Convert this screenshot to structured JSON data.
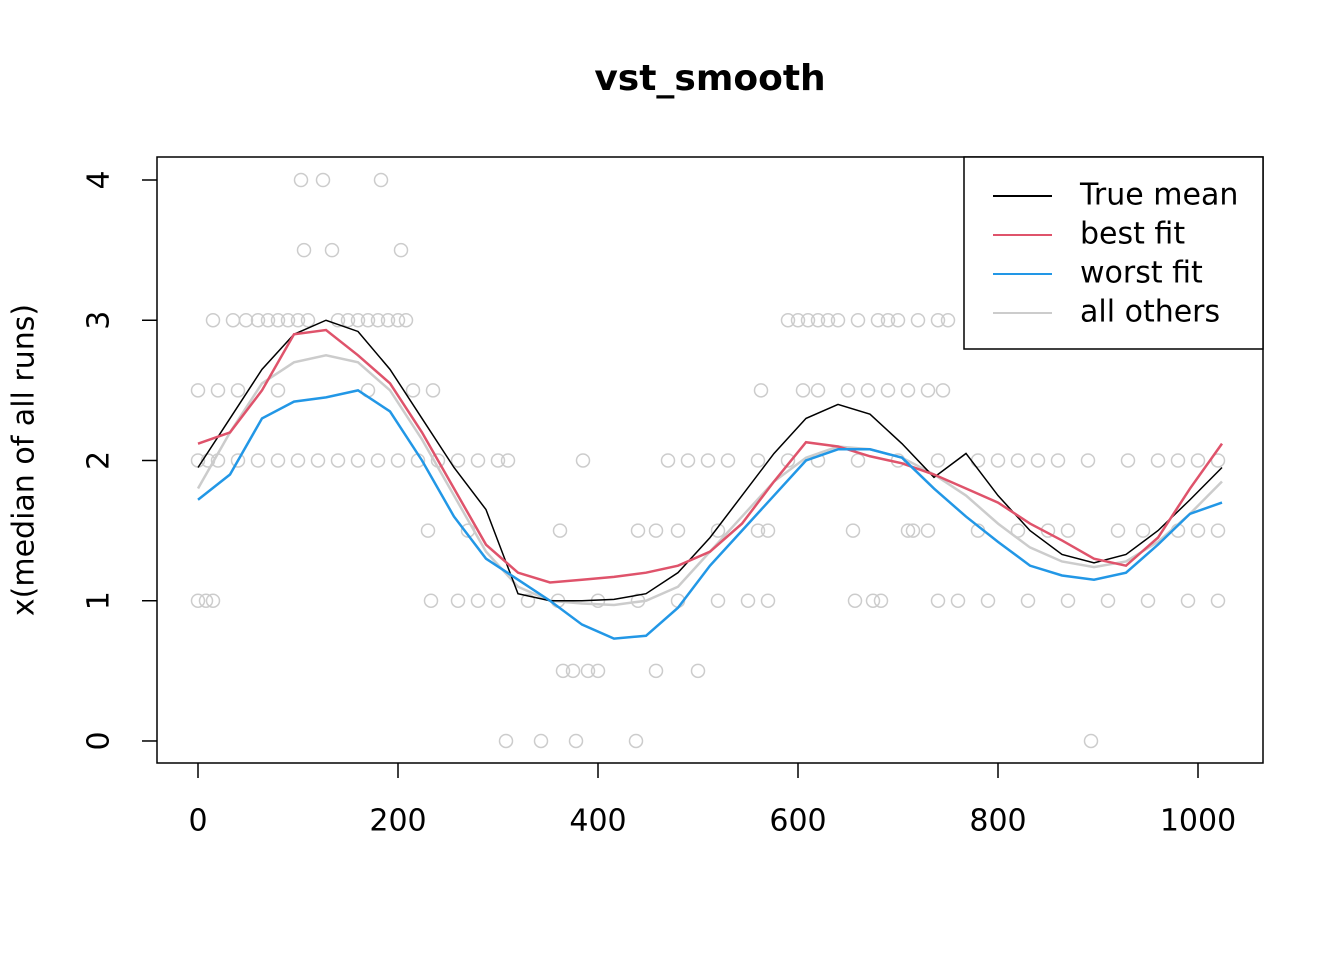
{
  "chart_data": {
    "type": "line",
    "title": "vst_smooth",
    "y_label": "x(median of all runs)",
    "xlim": [
      -41,
      1065
    ],
    "ylim": [
      -0.157,
      4.164
    ],
    "xticks": [
      0,
      200,
      400,
      600,
      800,
      1000
    ],
    "yticks": [
      0,
      1,
      2,
      3,
      4
    ],
    "legend": "top-right",
    "x": [
      0,
      32,
      64,
      96,
      128,
      160,
      192,
      224,
      256,
      288,
      320,
      352,
      384,
      416,
      448,
      480,
      512,
      544,
      576,
      608,
      640,
      672,
      704,
      736,
      768,
      800,
      832,
      864,
      896,
      928,
      960,
      992,
      1024
    ],
    "series": [
      {
        "name": "True mean",
        "color": "#000000",
        "values": [
          1.95,
          2.3,
          2.65,
          2.9,
          3.0,
          2.92,
          2.65,
          2.3,
          1.95,
          1.65,
          1.05,
          1.0,
          1.0,
          1.01,
          1.05,
          1.2,
          1.45,
          1.75,
          2.05,
          2.3,
          2.4,
          2.33,
          2.12,
          1.88,
          2.05,
          1.75,
          1.5,
          1.33,
          1.27,
          1.33,
          1.5,
          1.72,
          1.95
        ]
      },
      {
        "name": "best fit",
        "color": "#df536b",
        "values": [
          2.12,
          2.2,
          2.5,
          2.9,
          2.93,
          2.75,
          2.55,
          2.2,
          1.8,
          1.4,
          1.2,
          1.13,
          1.15,
          1.17,
          1.2,
          1.25,
          1.35,
          1.55,
          1.85,
          2.13,
          2.1,
          2.03,
          1.98,
          1.9,
          1.8,
          1.7,
          1.55,
          1.43,
          1.3,
          1.25,
          1.45,
          1.8,
          2.12
        ]
      },
      {
        "name": "worst fit",
        "color": "#2297e6",
        "values": [
          1.72,
          1.9,
          2.3,
          2.42,
          2.45,
          2.5,
          2.35,
          2.0,
          1.6,
          1.3,
          1.15,
          1.0,
          0.83,
          0.73,
          0.75,
          0.95,
          1.25,
          1.5,
          1.75,
          2.0,
          2.08,
          2.08,
          2.02,
          1.8,
          1.6,
          1.42,
          1.25,
          1.18,
          1.15,
          1.2,
          1.4,
          1.62,
          1.7
        ]
      },
      {
        "name": "all others",
        "color": "#cccccc",
        "values": [
          1.8,
          2.2,
          2.55,
          2.7,
          2.75,
          2.7,
          2.5,
          2.15,
          1.75,
          1.35,
          1.1,
          1.0,
          0.98,
          0.97,
          1.0,
          1.1,
          1.35,
          1.6,
          1.85,
          2.02,
          2.1,
          2.08,
          2.02,
          1.9,
          1.75,
          1.55,
          1.38,
          1.28,
          1.24,
          1.28,
          1.42,
          1.62,
          1.85
        ]
      }
    ],
    "points": {
      "color": "#cccccc",
      "x": [
        103,
        125,
        183,
        106,
        134,
        203,
        15,
        35,
        48,
        60,
        70,
        80,
        90,
        100,
        110,
        140,
        150,
        160,
        170,
        180,
        190,
        200,
        208,
        590,
        600,
        610,
        620,
        630,
        640,
        660,
        680,
        690,
        700,
        720,
        740,
        750,
        0,
        20,
        40,
        80,
        170,
        215,
        235,
        563,
        605,
        620,
        650,
        670,
        690,
        710,
        730,
        745,
        0,
        10,
        20,
        40,
        60,
        80,
        100,
        120,
        140,
        160,
        180,
        200,
        220,
        240,
        260,
        280,
        300,
        310,
        385,
        470,
        490,
        510,
        530,
        560,
        590,
        620,
        660,
        700,
        740,
        780,
        800,
        820,
        840,
        860,
        890,
        930,
        960,
        980,
        1000,
        1020,
        230,
        270,
        362,
        440,
        458,
        480,
        520,
        560,
        570,
        655,
        710,
        715,
        730,
        780,
        820,
        850,
        870,
        920,
        945,
        980,
        1000,
        1020,
        0,
        8,
        15,
        233,
        260,
        280,
        300,
        330,
        360,
        400,
        440,
        480,
        520,
        550,
        570,
        657,
        675,
        683,
        740,
        760,
        790,
        830,
        870,
        910,
        950,
        990,
        1020,
        365,
        375,
        390,
        400,
        458,
        500,
        308,
        343,
        378,
        438,
        893
      ],
      "y": [
        4,
        4,
        4,
        3.5,
        3.5,
        3.5,
        3,
        3,
        3,
        3,
        3,
        3,
        3,
        3,
        3,
        3,
        3,
        3,
        3,
        3,
        3,
        3,
        3,
        3,
        3,
        3,
        3,
        3,
        3,
        3,
        3,
        3,
        3,
        3,
        3,
        3,
        2.5,
        2.5,
        2.5,
        2.5,
        2.5,
        2.5,
        2.5,
        2.5,
        2.5,
        2.5,
        2.5,
        2.5,
        2.5,
        2.5,
        2.5,
        2.5,
        2,
        2,
        2,
        2,
        2,
        2,
        2,
        2,
        2,
        2,
        2,
        2,
        2,
        2,
        2,
        2,
        2,
        2,
        2,
        2,
        2,
        2,
        2,
        2,
        2,
        2,
        2,
        2,
        2,
        2,
        2,
        2,
        2,
        2,
        2,
        2,
        2,
        2,
        2,
        2,
        1.5,
        1.5,
        1.5,
        1.5,
        1.5,
        1.5,
        1.5,
        1.5,
        1.5,
        1.5,
        1.5,
        1.5,
        1.5,
        1.5,
        1.5,
        1.5,
        1.5,
        1.5,
        1.5,
        1.5,
        1.5,
        1.5,
        1,
        1,
        1,
        1,
        1,
        1,
        1,
        1,
        1,
        1,
        1,
        1,
        1,
        1,
        1,
        1,
        1,
        1,
        1,
        1,
        1,
        1,
        1,
        1,
        1,
        1,
        1,
        0.5,
        0.5,
        0.5,
        0.5,
        0.5,
        0.5,
        0,
        0,
        0,
        0,
        0
      ]
    }
  }
}
